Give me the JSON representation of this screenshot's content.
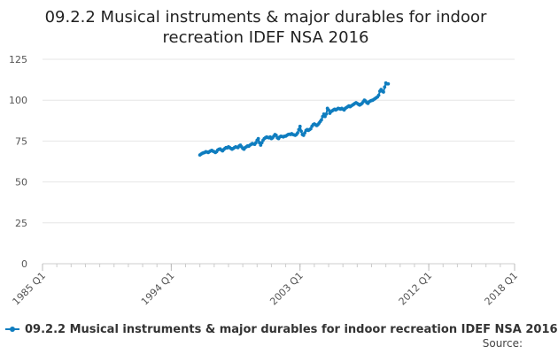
{
  "chart_data": {
    "type": "line",
    "title_lines": [
      "09.2.2 Musical instruments & major durables for indoor",
      "recreation IDEF NSA 2016"
    ],
    "xlabel": "",
    "ylabel": "",
    "x_tick_labels": [
      "1985 Q1",
      "1994 Q1",
      "2003 Q1",
      "2012 Q1",
      "2018 Q1"
    ],
    "x_tick_years": [
      1985,
      1994,
      2003,
      2012,
      2018
    ],
    "x_range": [
      1985,
      2018
    ],
    "y_ticks": [
      0,
      25,
      50,
      75,
      100,
      125
    ],
    "ylim": [
      0,
      125
    ],
    "grid": true,
    "legend_position": "bottom-left",
    "series": [
      {
        "name": "09.2.2 Musical instruments & major durables for indoor recreation IDEF NSA 2016",
        "color": "#0f7dbf",
        "start": "1996 Q1",
        "start_year": 1996,
        "points_per_year": 12,
        "values": [
          66.5,
          67.0,
          67.5,
          67.8,
          68.0,
          68.5,
          68.3,
          68.0,
          68.5,
          69.0,
          69.3,
          68.8,
          68.5,
          68.0,
          68.5,
          69.5,
          70.0,
          70.2,
          69.5,
          69.0,
          69.8,
          70.5,
          71.0,
          70.8,
          71.5,
          71.0,
          70.5,
          70.0,
          70.5,
          71.0,
          71.5,
          71.2,
          71.0,
          72.0,
          72.5,
          71.5,
          70.5,
          70.0,
          71.0,
          71.5,
          72.0,
          71.8,
          72.5,
          73.0,
          73.5,
          73.2,
          73.0,
          74.0,
          75.5,
          76.5,
          74.0,
          72.5,
          74.0,
          75.5,
          76.5,
          77.0,
          77.5,
          77.2,
          77.0,
          77.5,
          76.5,
          77.0,
          78.0,
          79.0,
          78.5,
          77.0,
          76.5,
          77.5,
          78.0,
          77.8,
          77.5,
          78.0,
          78.0,
          78.5,
          79.0,
          79.2,
          79.0,
          79.5,
          79.0,
          78.8,
          78.5,
          79.0,
          80.0,
          82.0,
          84.0,
          81.0,
          79.0,
          78.5,
          80.0,
          81.5,
          82.0,
          81.5,
          82.0,
          82.5,
          84.0,
          85.0,
          85.5,
          85.0,
          84.5,
          85.0,
          86.0,
          87.0,
          88.0,
          90.0,
          91.5,
          90.0,
          91.5,
          95.0,
          94.0,
          92.0,
          93.0,
          93.5,
          94.0,
          94.5,
          94.0,
          94.5,
          95.0,
          94.8,
          94.5,
          95.0,
          94.5,
          94.0,
          95.0,
          95.5,
          96.0,
          96.5,
          96.0,
          96.5,
          97.0,
          97.5,
          98.0,
          98.5,
          98.0,
          97.5,
          97.0,
          97.5,
          98.0,
          99.0,
          100.0,
          99.5,
          98.5,
          98.0,
          99.0,
          99.5,
          99.8,
          100.0,
          100.5,
          101.0,
          101.5,
          102.0,
          103.0,
          105.5,
          106.5,
          105.5,
          105.0,
          108.0,
          110.5,
          110.0,
          110.0
        ]
      }
    ]
  },
  "legend": {
    "label": "09.2.2 Musical instruments & major durables for indoor recreation IDEF NSA 2016"
  },
  "source": {
    "label": "Source:"
  }
}
